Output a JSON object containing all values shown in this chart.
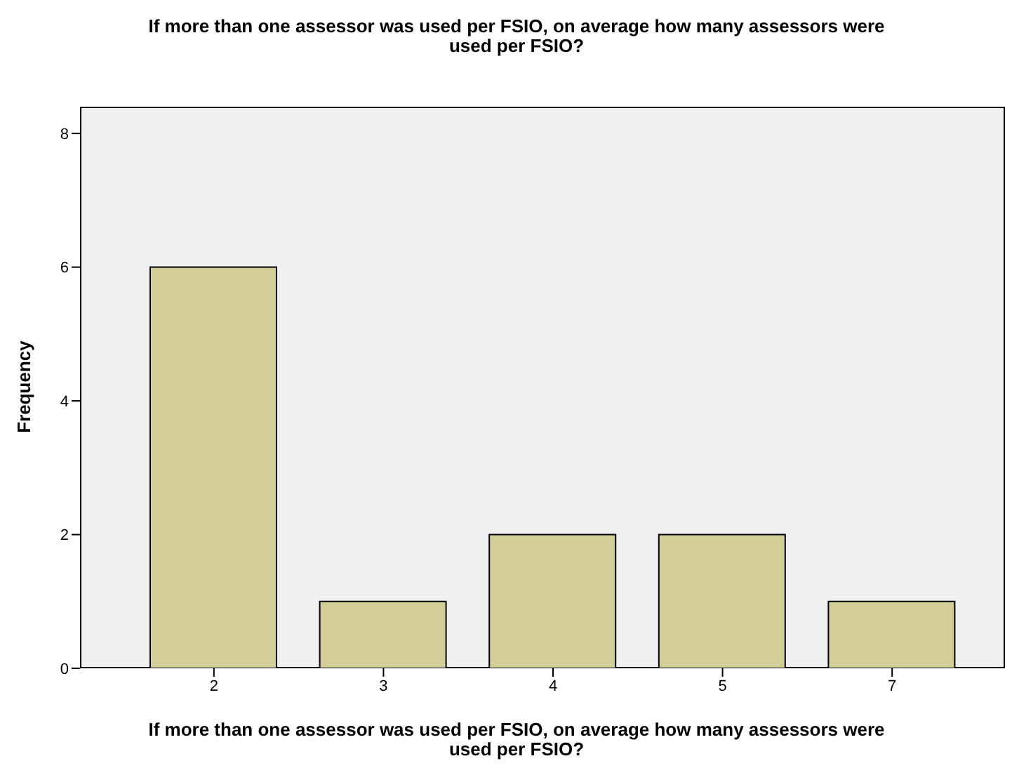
{
  "chart_data": {
    "type": "bar",
    "title": "If more than one assessor was used per FSIO, on average how many assessors were used per FSIO?",
    "xlabel": "If more than one assessor was used per FSIO, on average how many assessors were used per FSIO?",
    "ylabel": "Frequency",
    "categories": [
      "2",
      "3",
      "4",
      "5",
      "7"
    ],
    "values": [
      6,
      1,
      2,
      2,
      1
    ],
    "color": "#d3ce98",
    "ylim": [
      0,
      8.4
    ],
    "yticks": [
      0,
      2,
      4,
      6,
      8
    ]
  }
}
